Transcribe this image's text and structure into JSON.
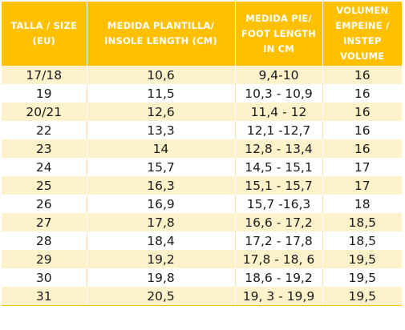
{
  "table": {
    "headers": [
      "TALLA / SIZE (EU)",
      "MEDIDA PLANTILLA/ INSOLE LENGTH (CM)",
      "MEDIDA PIE/ FOOT LENGTH IN CM",
      "VOLUMEN EMPEINE / INSTEP VOLUME"
    ],
    "rows": [
      [
        "17/18",
        "10,6",
        "9,4-10",
        "16"
      ],
      [
        "19",
        "11,5",
        "10,3 - 10,9",
        "16"
      ],
      [
        "20/21",
        "12,6",
        "11,4 - 12",
        "16"
      ],
      [
        "22",
        "13,3",
        "12,1 -12,7",
        "16"
      ],
      [
        "23",
        "14",
        "12,8 - 13,4",
        "16"
      ],
      [
        "24",
        "15,7",
        "14,5 - 15,1",
        "17"
      ],
      [
        "25",
        "16,3",
        "15,1 - 15,7",
        "17"
      ],
      [
        "26",
        "16,9",
        "15,7 -16,3",
        "18"
      ],
      [
        "27",
        "17,8",
        "16,6 - 17,2",
        "18,5"
      ],
      [
        "28",
        "18,4",
        "17,2 - 17,8",
        "18,5"
      ],
      [
        "29",
        "19,2",
        "17,8 - 18, 6",
        "19,5"
      ],
      [
        "30",
        "19,8",
        "18,6 - 19,2",
        "19,5"
      ],
      [
        "31",
        "20,5",
        "19, 3 - 19,9",
        "19,5"
      ]
    ]
  },
  "colors": {
    "header_bg": "#ffc000",
    "header_text": "#ffffff",
    "row_stripe": "#fef2cb",
    "row_plain": "#ffffff"
  }
}
